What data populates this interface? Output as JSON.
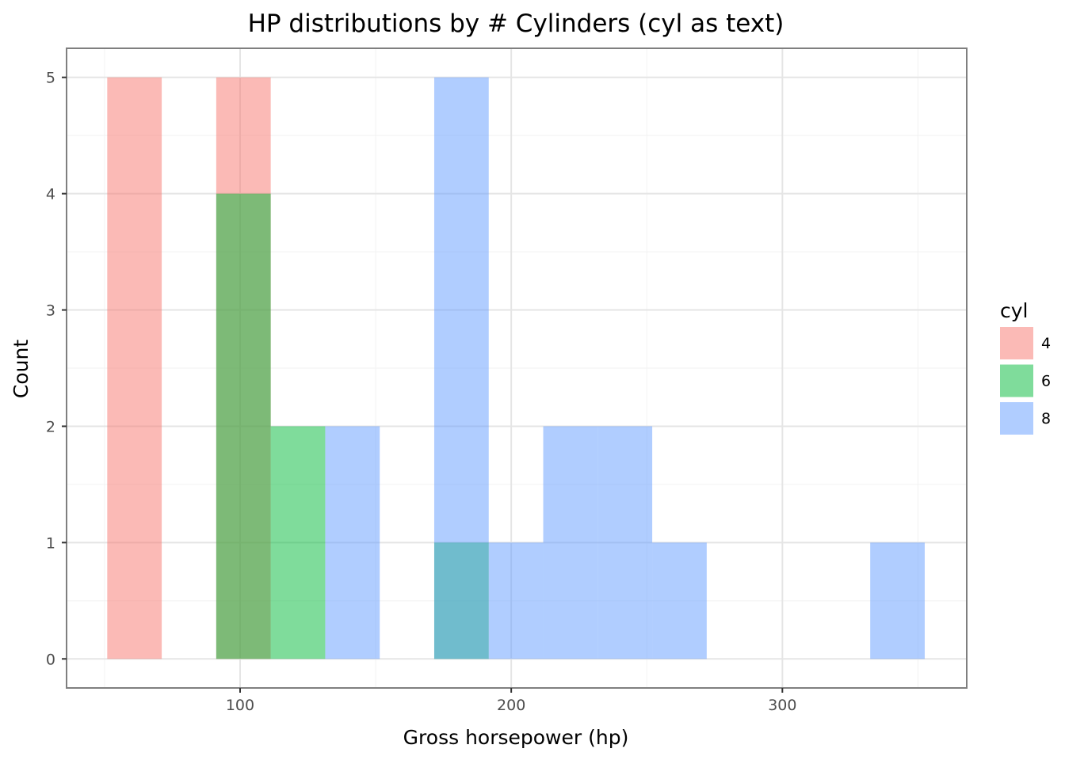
{
  "chart_data": {
    "type": "histogram",
    "title": "HP distributions by # Cylinders (cyl as text)",
    "xlabel": "Gross horsepower (hp)",
    "ylabel": "Count",
    "xlim": [
      36,
      368
    ],
    "ylim": [
      -0.25,
      5.25
    ],
    "x_ticks": [
      100,
      200,
      300
    ],
    "y_ticks": [
      0,
      1,
      2,
      3,
      4,
      5
    ],
    "bin_width": 20.1,
    "grid": true,
    "legend": {
      "title": "cyl",
      "placement": "right"
    },
    "series": [
      {
        "name": "4",
        "color": "#F8766D",
        "alpha": 0.5,
        "bins": [
          {
            "x": [
              51.0,
              71.1
            ],
            "count": 5
          },
          {
            "x": [
              91.2,
              111.3
            ],
            "count": 5
          }
        ]
      },
      {
        "name": "6",
        "color": "#00BA38",
        "alpha": 0.5,
        "bins": [
          {
            "x": [
              91.2,
              111.3
            ],
            "count": 4
          },
          {
            "x": [
              111.3,
              131.4
            ],
            "count": 2
          },
          {
            "x": [
              171.6,
              191.7
            ],
            "count": 1
          }
        ]
      },
      {
        "name": "8",
        "color": "#619CFF",
        "alpha": 0.5,
        "bins": [
          {
            "x": [
              131.4,
              151.5
            ],
            "count": 2
          },
          {
            "x": [
              171.6,
              191.7
            ],
            "count": 5
          },
          {
            "x": [
              191.7,
              211.8
            ],
            "count": 1
          },
          {
            "x": [
              211.8,
              231.9
            ],
            "count": 2
          },
          {
            "x": [
              231.9,
              252.0
            ],
            "count": 2
          },
          {
            "x": [
              252.0,
              272.1
            ],
            "count": 1
          },
          {
            "x": [
              332.4,
              352.5
            ],
            "count": 1
          }
        ]
      }
    ]
  }
}
